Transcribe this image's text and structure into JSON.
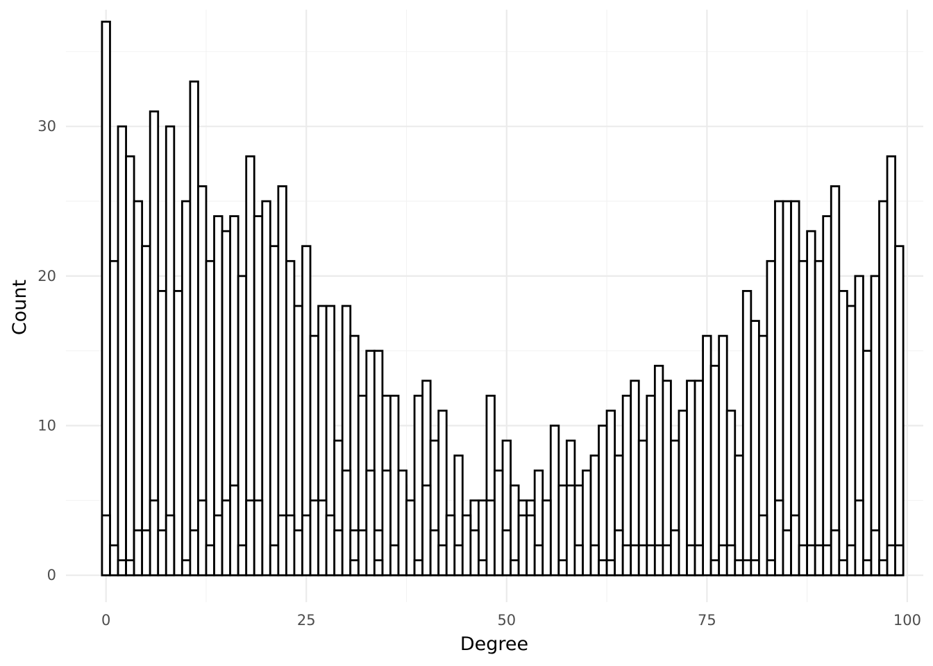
{
  "chart_data": {
    "type": "bar",
    "title": "",
    "xlabel": "Degree",
    "ylabel": "Count",
    "xlim": [
      -5,
      102
    ],
    "ylim": [
      -1.8,
      37.8
    ],
    "x_ticks": [
      0,
      25,
      50,
      75,
      100
    ],
    "y_ticks": [
      0,
      10,
      20,
      30
    ],
    "bin_width": 1,
    "grid": true,
    "legend": "none",
    "bar_fill": "#ffffff",
    "bar_outline": "#000000",
    "series": [
      {
        "x": [
          0,
          1,
          2,
          3,
          4,
          5,
          6,
          7,
          8,
          9,
          10,
          11,
          12,
          13,
          14,
          15,
          16,
          17,
          18,
          19,
          20,
          21,
          22,
          23,
          24,
          25,
          26,
          27,
          28,
          29,
          30,
          31,
          32,
          33,
          34,
          35,
          36,
          37,
          38,
          39,
          40,
          41,
          42,
          43,
          44,
          45,
          46,
          47,
          48,
          49,
          50,
          51,
          52,
          53,
          54,
          55,
          56,
          57,
          58,
          59,
          60,
          61,
          62,
          63,
          64,
          65,
          66,
          67,
          68,
          69,
          70,
          71,
          72,
          73,
          74,
          75,
          76,
          77,
          78,
          79,
          80,
          81,
          82,
          83,
          84,
          85,
          86,
          87,
          88,
          89,
          90,
          91,
          92,
          93,
          94,
          95,
          96,
          97,
          98,
          99
        ],
        "values": [
          37,
          21,
          30,
          28,
          25,
          22,
          31,
          19,
          30,
          19,
          25,
          33,
          26,
          21,
          24,
          23,
          24,
          20,
          28,
          24,
          25,
          22,
          26,
          21,
          18,
          22,
          16,
          18,
          18,
          9,
          18,
          16,
          12,
          15,
          15,
          12,
          12,
          6,
          5,
          12,
          13,
          9,
          11,
          4,
          8,
          4,
          5,
          5,
          12,
          3,
          9,
          6,
          5,
          5,
          7,
          5,
          10,
          6,
          9,
          6,
          7,
          8,
          10,
          11,
          8,
          12,
          13,
          9,
          12,
          14,
          13,
          9,
          11,
          13,
          13,
          16,
          14,
          16,
          11,
          8,
          19,
          17,
          16,
          21,
          25,
          25,
          25,
          21,
          23,
          21,
          24,
          26,
          19,
          18,
          20,
          15,
          20,
          25,
          28,
          22
        ]
      },
      {
        "x": [
          0,
          1,
          2,
          3,
          4,
          5,
          6,
          7,
          8,
          9,
          10,
          11,
          12,
          13,
          14,
          15,
          16,
          17,
          18,
          19,
          20,
          21,
          22,
          23,
          24,
          25,
          26,
          27,
          28,
          29,
          30,
          31,
          32,
          33,
          34,
          35,
          36,
          37,
          38,
          39,
          40,
          41,
          42,
          43,
          44,
          45,
          46,
          47,
          48,
          49,
          50,
          51,
          52,
          53,
          54,
          55,
          56,
          57,
          58,
          59,
          60,
          61,
          62,
          63,
          64,
          65,
          66,
          67,
          68,
          69,
          70,
          71,
          72,
          73,
          74,
          75,
          76,
          77,
          78,
          79,
          80,
          81,
          82,
          83,
          84,
          85,
          86,
          87,
          88,
          89,
          90,
          91,
          92,
          93,
          94,
          95,
          96,
          97,
          98,
          99
        ],
        "values": [
          4,
          2,
          1,
          1,
          3,
          3,
          5,
          3,
          4,
          0,
          1,
          3,
          5,
          2,
          4,
          5,
          6,
          2,
          5,
          5,
          0,
          2,
          4,
          4,
          3,
          4,
          5,
          5,
          4,
          3,
          7,
          3,
          3,
          7,
          3,
          7,
          2,
          7,
          5,
          1,
          6,
          3,
          2,
          4,
          2,
          4,
          3,
          1,
          5,
          7,
          3,
          1,
          4,
          4,
          2,
          5,
          0,
          1,
          6,
          2,
          0,
          2,
          1,
          1,
          3,
          2,
          2,
          2,
          2,
          2,
          2,
          3,
          0,
          2,
          2,
          0,
          1,
          2,
          2,
          1,
          1,
          1,
          4,
          1,
          5,
          3,
          4,
          2,
          2,
          2,
          2,
          3,
          1,
          2,
          5,
          1,
          3,
          1,
          2,
          2
        ]
      },
      {
        "x": [
          0,
          1,
          2,
          3,
          4,
          5,
          6,
          7,
          8,
          9,
          10,
          11,
          12,
          13,
          14,
          15,
          16,
          17,
          18,
          19,
          20,
          21,
          22,
          23,
          24,
          25,
          26,
          27,
          28,
          29,
          30,
          31,
          32,
          33,
          34,
          35,
          36,
          37,
          38,
          39,
          40,
          41,
          42,
          43,
          44,
          45,
          46,
          47,
          48,
          49,
          50,
          51,
          52,
          53,
          54,
          55,
          56,
          57,
          58,
          59,
          60,
          61,
          62,
          63,
          64,
          65,
          66,
          67,
          68,
          69,
          70,
          71,
          72,
          73,
          74,
          75,
          76,
          77,
          78,
          79,
          80,
          81,
          82,
          83,
          84,
          85,
          86,
          87,
          88,
          89,
          90,
          91,
          92,
          93,
          94,
          95,
          96,
          97,
          98,
          99
        ],
        "values": [
          0,
          0,
          0,
          0,
          0,
          0,
          0,
          0,
          0,
          0,
          0,
          0,
          0,
          0,
          0,
          0,
          0,
          0,
          0,
          0,
          0,
          0,
          0,
          0,
          0,
          0,
          0,
          0,
          0,
          0,
          0,
          1,
          0,
          0,
          1,
          0,
          0,
          0,
          0,
          0,
          0,
          0,
          0,
          0,
          0,
          0,
          0,
          0,
          0,
          0,
          0,
          0,
          0,
          0,
          0,
          0,
          0,
          0,
          0,
          0,
          0,
          0,
          0,
          0,
          0,
          0,
          0,
          0,
          0,
          0,
          0,
          0,
          0,
          0,
          0,
          0,
          0,
          0,
          0,
          0,
          0,
          0,
          0,
          0,
          0,
          0,
          0,
          0,
          0,
          0,
          0,
          0,
          0,
          0,
          0,
          0,
          0,
          0,
          0,
          0
        ]
      }
    ]
  }
}
